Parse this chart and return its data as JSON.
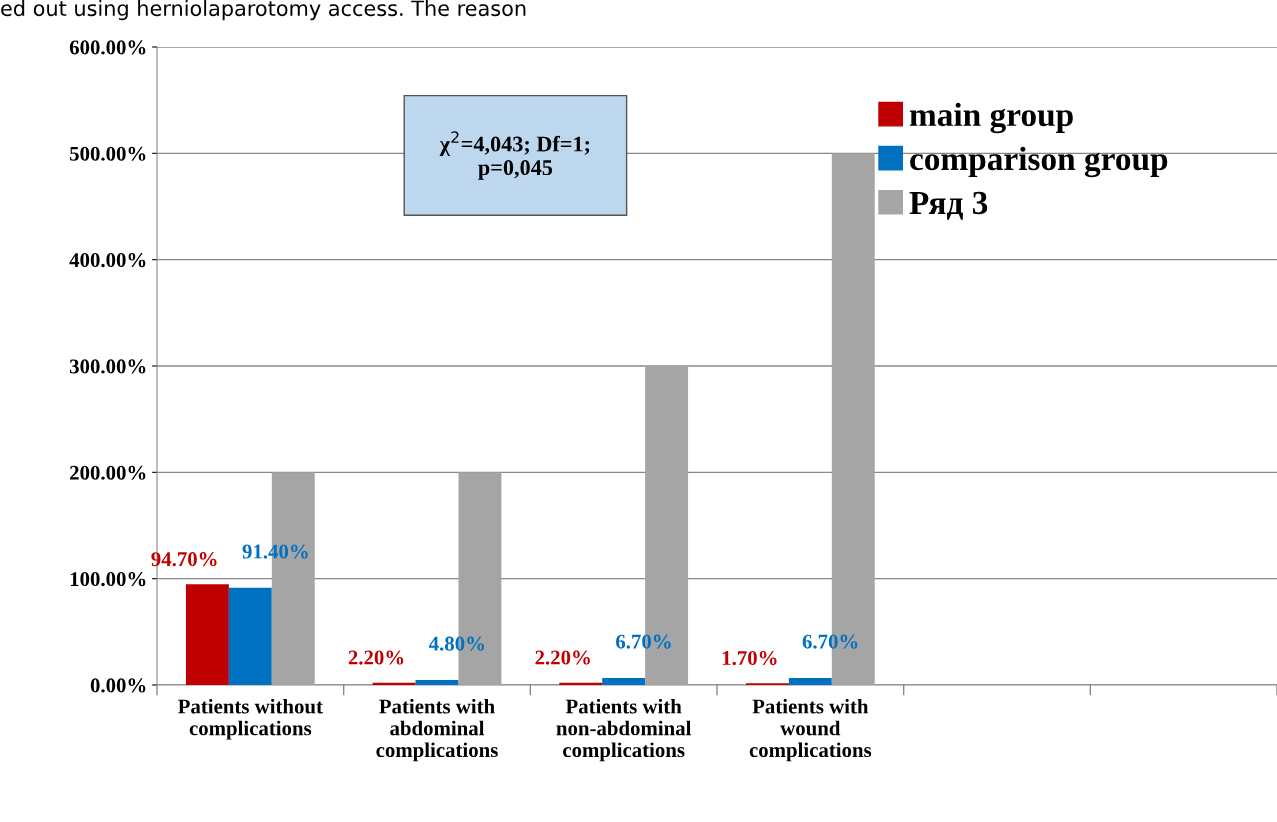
{
  "chart_data": {
    "type": "bar",
    "categories": [
      "Patients without complications",
      "Patients with abdominal complications",
      "Patients with non-abdominal complications",
      "Patients with wound complications",
      null,
      null
    ],
    "series": [
      {
        "name": "main group",
        "color": "#c00000",
        "values": [
          94.7,
          2.2,
          2.2,
          1.7,
          null,
          null
        ],
        "value_labels": [
          "94.70%",
          "2.20%",
          "2.20%",
          "1.70%",
          null,
          null
        ]
      },
      {
        "name": "comparison group",
        "color": "#0070c0",
        "values": [
          91.4,
          4.8,
          6.7,
          6.7,
          null,
          null
        ],
        "value_labels": [
          "91.40%",
          "4.80%",
          "6.70%",
          "6.70%",
          null,
          null
        ]
      },
      {
        "name": "Ряд 3",
        "color": "#a5a5a5",
        "values": [
          200,
          200,
          300,
          500,
          null,
          null
        ]
      }
    ],
    "ylim": [
      0,
      600
    ],
    "yticks": [
      {
        "value": 0,
        "label": "0.00%"
      },
      {
        "value": 100,
        "label": "100.00%"
      },
      {
        "value": 200,
        "label": "200.00%"
      },
      {
        "value": 300,
        "label": "300.00%"
      },
      {
        "value": 400,
        "label": "400.00%"
      },
      {
        "value": 500,
        "label": "500.00%"
      },
      {
        "value": 600,
        "label": "600.00%"
      }
    ],
    "grid": "y",
    "legend": "top right",
    "annotations": [
      "χ$^{2}$=4,043; Df=1;\np=0,045",
      "ed out using herniolaparotomy access. The reason"
    ]
  }
}
